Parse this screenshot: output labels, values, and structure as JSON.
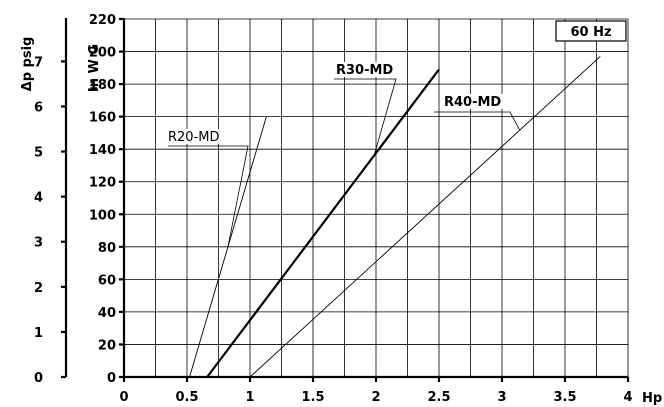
{
  "chart_data": {
    "type": "line",
    "x_axis": {
      "label": "Hp",
      "min": 0,
      "max": 4,
      "ticks": [
        {
          "value": 0,
          "label": "0"
        },
        {
          "value": 0.5,
          "label": "0.5"
        },
        {
          "value": 1,
          "label": "1"
        },
        {
          "value": 1.5,
          "label": "1.5"
        },
        {
          "value": 2,
          "label": "2"
        },
        {
          "value": 2.5,
          "label": "2.5"
        },
        {
          "value": 3,
          "label": "3"
        },
        {
          "value": 3.5,
          "label": "3.5"
        },
        {
          "value": 4,
          "label": "4"
        }
      ]
    },
    "y_axis_primary": {
      "label": "In W G",
      "min": 0,
      "max": 220,
      "ticks": [
        {
          "value": 0,
          "label": "0"
        },
        {
          "value": 20,
          "label": "20"
        },
        {
          "value": 40,
          "label": "40"
        },
        {
          "value": 60,
          "label": "60"
        },
        {
          "value": 80,
          "label": "80"
        },
        {
          "value": 100,
          "label": "100"
        },
        {
          "value": 120,
          "label": "120"
        },
        {
          "value": 140,
          "label": "140"
        },
        {
          "value": 160,
          "label": "160"
        },
        {
          "value": 180,
          "label": "180"
        },
        {
          "value": 200,
          "label": "200"
        },
        {
          "value": 220,
          "label": "220"
        }
      ]
    },
    "y_axis_secondary": {
      "label": "Δp  psig",
      "min": 0,
      "max": 7.94,
      "ticks": [
        {
          "value": 0,
          "label": "0"
        },
        {
          "value": 1,
          "label": "1"
        },
        {
          "value": 2,
          "label": "2"
        },
        {
          "value": 3,
          "label": "3"
        },
        {
          "value": 4,
          "label": "4"
        },
        {
          "value": 5,
          "label": "5"
        },
        {
          "value": 6,
          "label": "6"
        },
        {
          "value": 7,
          "label": "7"
        }
      ]
    },
    "grid": true,
    "annotation": "60 Hz",
    "series": [
      {
        "name": "R20-MD",
        "x": [
          0.52,
          1.13
        ],
        "y": [
          0,
          160
        ],
        "stroke_width": 0.9
      },
      {
        "name": "R30-MD",
        "x": [
          0.66,
          2.5
        ],
        "y": [
          0,
          189
        ],
        "stroke_width": 2.2
      },
      {
        "name": "R40-MD",
        "x": [
          1.0,
          3.78
        ],
        "y": [
          0,
          197
        ],
        "stroke_width": 0.9
      }
    ]
  }
}
